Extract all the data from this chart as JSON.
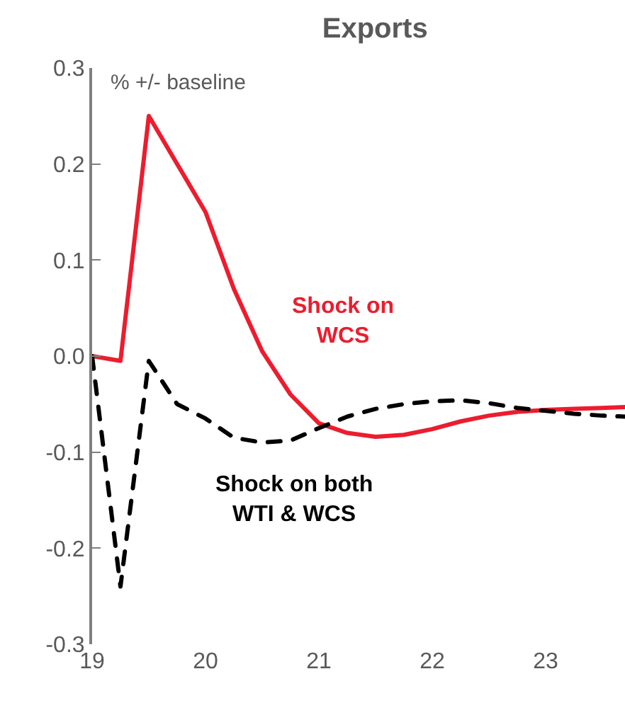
{
  "chart_data": {
    "type": "line",
    "title": "Exports",
    "ylabel": "% +/- baseline",
    "x": [
      19,
      19.25,
      19.5,
      19.75,
      20,
      20.25,
      20.5,
      20.75,
      21,
      21.25,
      21.5,
      21.75,
      22,
      22.25,
      22.5,
      22.75,
      23,
      23.25,
      23.5,
      23.7
    ],
    "series": [
      {
        "name": "Shock on\nWCS",
        "color": "#ed1c2e",
        "line_style": "solid",
        "values": [
          0,
          -0.005,
          0.25,
          0.2,
          0.15,
          0.07,
          0.005,
          -0.04,
          -0.07,
          -0.08,
          -0.084,
          -0.082,
          -0.076,
          -0.068,
          -0.062,
          -0.058,
          -0.056,
          -0.055,
          -0.054,
          -0.053
        ]
      },
      {
        "name": "Shock on both\nWTI & WCS",
        "color": "#000000",
        "line_style": "dashed",
        "values": [
          0,
          -0.24,
          -0.005,
          -0.05,
          -0.065,
          -0.085,
          -0.09,
          -0.088,
          -0.075,
          -0.063,
          -0.055,
          -0.05,
          -0.047,
          -0.046,
          -0.049,
          -0.054,
          -0.057,
          -0.06,
          -0.062,
          -0.063
        ]
      }
    ],
    "xlim": [
      19,
      23.7
    ],
    "xticks": [
      19,
      20,
      21,
      22,
      23
    ],
    "ylim": [
      -0.3,
      0.3
    ],
    "yticks": [
      {
        "value": -0.3,
        "label": "-0.3"
      },
      {
        "value": -0.2,
        "label": "-0.2"
      },
      {
        "value": -0.1,
        "label": "-0.1"
      },
      {
        "value": 0,
        "label": "0.0"
      },
      {
        "value": 0.1,
        "label": "0.1"
      },
      {
        "value": 0.2,
        "label": "0.2"
      },
      {
        "value": 0.3,
        "label": "0.3"
      }
    ],
    "grid": false,
    "legend": false
  }
}
